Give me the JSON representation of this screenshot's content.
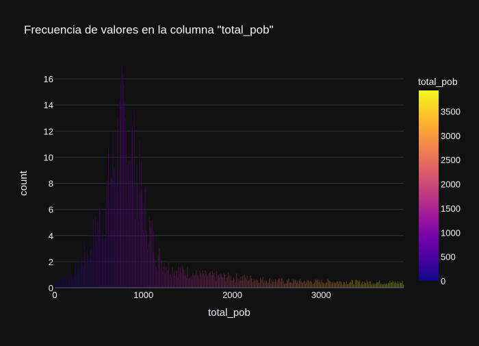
{
  "chart_data": {
    "type": "bar",
    "title": "Frecuencia de valores en la columna \"total_pob\"",
    "xlabel": "total_pob",
    "ylabel": "count",
    "xlim": [
      0,
      3930
    ],
    "ylim": [
      0,
      16
    ],
    "x_ticks": [
      0,
      1000,
      2000,
      3000
    ],
    "y_ticks": [
      0,
      2,
      4,
      6,
      8,
      10,
      12,
      14,
      16
    ],
    "grid": true,
    "colorscale": [
      "#0d0887",
      "#46039f",
      "#7201a8",
      "#9c179e",
      "#bd3786",
      "#d8576b",
      "#ed7953",
      "#fb9f3a",
      "#fdca26",
      "#f0f921"
    ],
    "colorbar": {
      "title": "total_pob",
      "range": [
        0,
        3930
      ],
      "ticks": [
        0,
        500,
        1000,
        1500,
        2000,
        2500,
        3000,
        3500
      ]
    },
    "bin_width": 10,
    "histogram_profile": [
      {
        "x": 0,
        "count": 0.5
      },
      {
        "x": 200,
        "count": 1
      },
      {
        "x": 300,
        "count": 2
      },
      {
        "x": 450,
        "count": 4
      },
      {
        "x": 550,
        "count": 6
      },
      {
        "x": 650,
        "count": 9
      },
      {
        "x": 750,
        "count": 12
      },
      {
        "x": 850,
        "count": 11
      },
      {
        "x": 950,
        "count": 8
      },
      {
        "x": 1050,
        "count": 5
      },
      {
        "x": 1150,
        "count": 2.5
      },
      {
        "x": 1300,
        "count": 1.5
      },
      {
        "x": 1600,
        "count": 1
      },
      {
        "x": 2000,
        "count": 0.8
      },
      {
        "x": 2600,
        "count": 0.5
      },
      {
        "x": 3930,
        "count": 0.4
      }
    ],
    "background": "#111111",
    "grid_color": "#283442"
  }
}
